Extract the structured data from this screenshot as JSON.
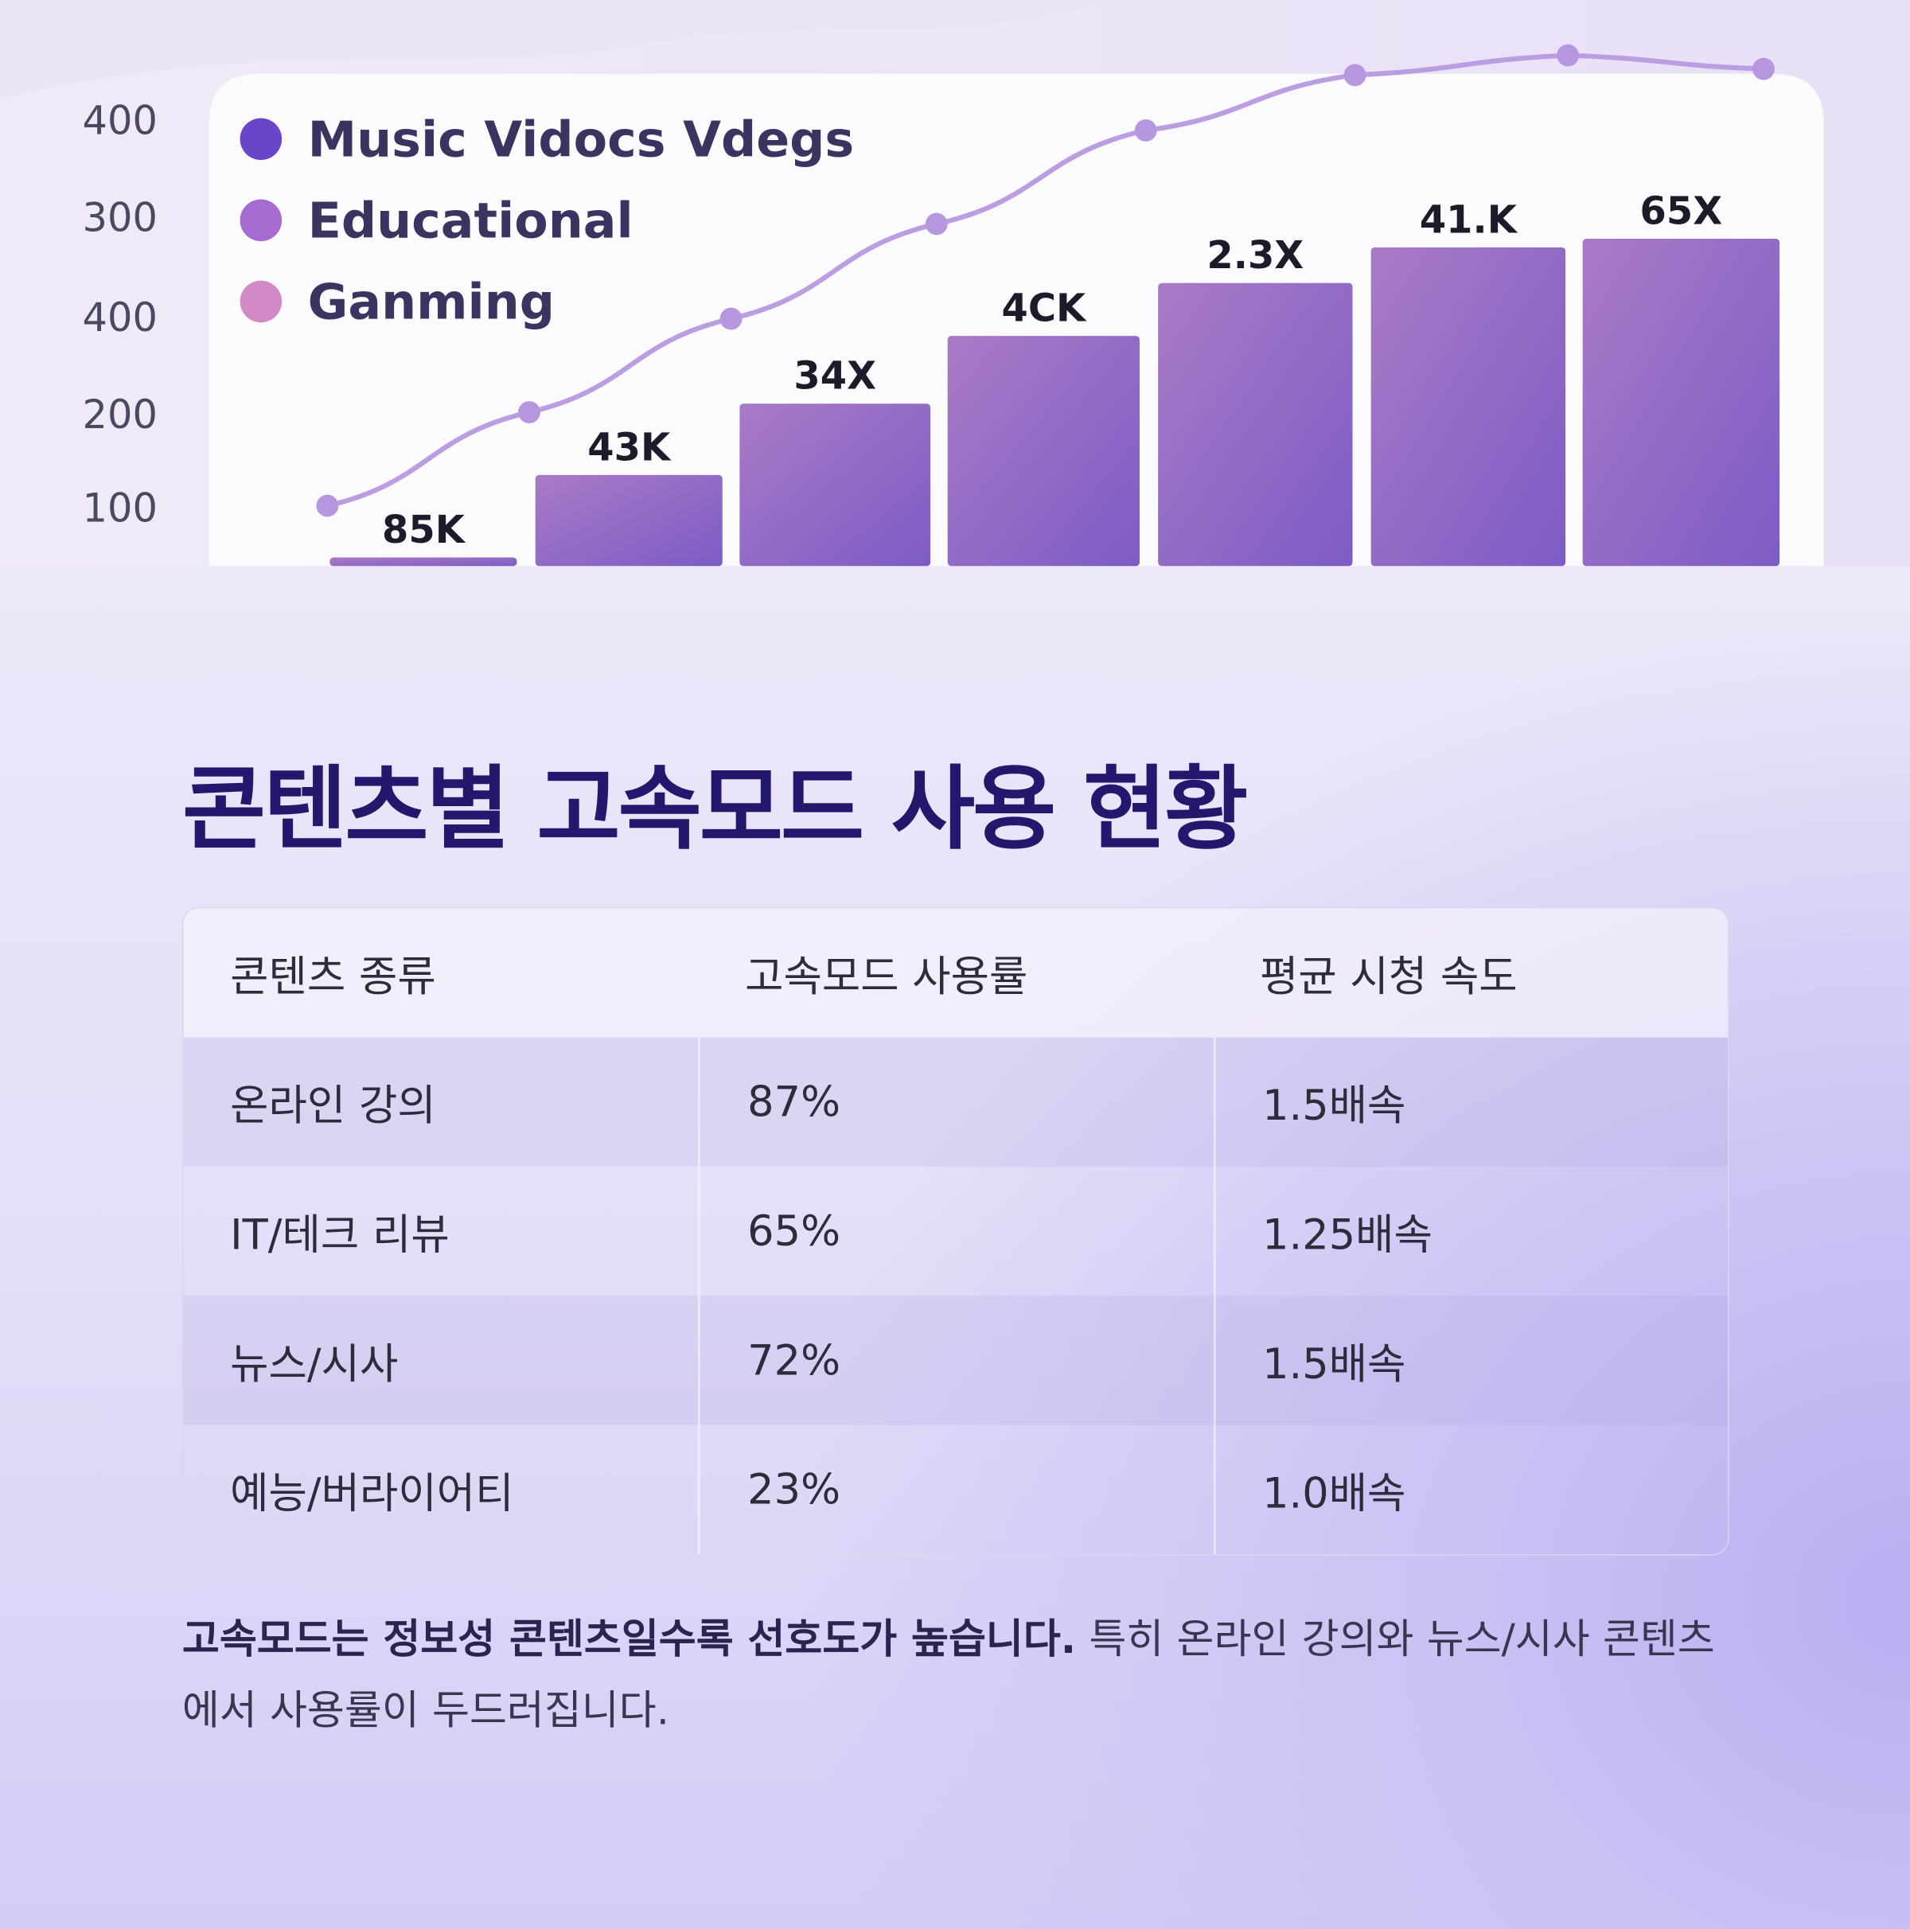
{
  "illustration": {
    "y_axis_labels": [
      "400",
      "300",
      "400",
      "200",
      "100"
    ],
    "legend": [
      "Music Vidocs Vdegs",
      "Educational",
      "Ganming"
    ],
    "bar_labels": [
      "85K",
      "43K",
      "34X",
      "4CK",
      "2.3X",
      "41.K",
      "65X"
    ]
  },
  "heading": "콘텐츠별 고속모드 사용 현황",
  "table": {
    "header": [
      "콘텐츠 종류",
      "고속모드 사용률",
      "평균 시청 속도"
    ],
    "rows": [
      [
        "온라인 강의",
        "87%",
        "1.5배속"
      ],
      [
        "IT/테크 리뷰",
        "65%",
        "1.25배속"
      ],
      [
        "뉴스/시사",
        "72%",
        "1.5배속"
      ],
      [
        "예능/버라이어티",
        "23%",
        "1.0배속"
      ]
    ]
  },
  "summary": {
    "bold": "고속모드는 정보성 콘텐츠일수록 선호도가 높습니다.",
    "text": "특히 온라인 강의와 뉴스/시사 콘텐츠에서 사용률이 두드러집니다."
  }
}
